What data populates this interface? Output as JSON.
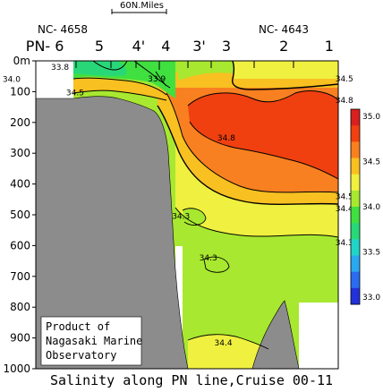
{
  "chart_data": {
    "type": "heatmap",
    "title": "Salinity along PN line,Cruise 00-11",
    "scale_label": "60N.Miles",
    "station_ids": {
      "left": "NC- 4658",
      "right": "NC- 4643"
    },
    "stations": [
      {
        "label": "PN- 6",
        "x_frac": 0.03
      },
      {
        "label": "5",
        "x_frac": 0.21
      },
      {
        "label": "4'",
        "x_frac": 0.34
      },
      {
        "label": "4",
        "x_frac": 0.43
      },
      {
        "label": "3'",
        "x_frac": 0.54
      },
      {
        "label": "3",
        "x_frac": 0.63
      },
      {
        "label": "2",
        "x_frac": 0.82
      },
      {
        "label": "1",
        "x_frac": 0.97
      }
    ],
    "y_axis": {
      "unit": "m",
      "ylim": [
        0,
        1000
      ],
      "reversed": true,
      "ticks": [
        0,
        100,
        200,
        300,
        400,
        500,
        600,
        700,
        800,
        900,
        1000
      ],
      "tick_labels": [
        "0m",
        "100",
        "200",
        "300",
        "400",
        "500",
        "600",
        "700",
        "800",
        "900",
        "1000"
      ]
    },
    "colorbar": {
      "ticks": [
        33.0,
        33.5,
        34.0,
        34.5,
        35.0
      ],
      "tick_labels": [
        "33.0",
        "33.5",
        "34.0",
        "34.5",
        "35.0"
      ],
      "colors": [
        "#2232d8",
        "#2a6cf0",
        "#2aa8f0",
        "#22d4c8",
        "#28d878",
        "#40e040",
        "#a8e830",
        "#f0f040",
        "#f8c020",
        "#f88020",
        "#f04010",
        "#d82020"
      ]
    },
    "contour_labels": [
      {
        "text": "33.8",
        "x_frac": 0.08,
        "depth": 20
      },
      {
        "text": "34.0",
        "x_frac": -0.08,
        "depth": 60
      },
      {
        "text": "33.9",
        "x_frac": 0.4,
        "depth": 58
      },
      {
        "text": "34.5",
        "x_frac": 0.13,
        "depth": 103
      },
      {
        "text": "34.5",
        "x_frac": 1.02,
        "depth": 58
      },
      {
        "text": "34.8",
        "x_frac": 1.02,
        "depth": 128
      },
      {
        "text": "34.8",
        "x_frac": 0.63,
        "depth": 250
      },
      {
        "text": "34.5",
        "x_frac": 1.02,
        "depth": 440
      },
      {
        "text": "34.4",
        "x_frac": 1.02,
        "depth": 480
      },
      {
        "text": "34.3",
        "x_frac": 0.48,
        "depth": 505
      },
      {
        "text": "34.3",
        "x_frac": 1.02,
        "depth": 590
      },
      {
        "text": "34.3",
        "x_frac": 0.57,
        "depth": 640
      },
      {
        "text": "34.4",
        "x_frac": 0.62,
        "depth": 915
      }
    ],
    "credit": [
      "Product of",
      "Nagasaki Marine",
      "Observatory"
    ]
  }
}
